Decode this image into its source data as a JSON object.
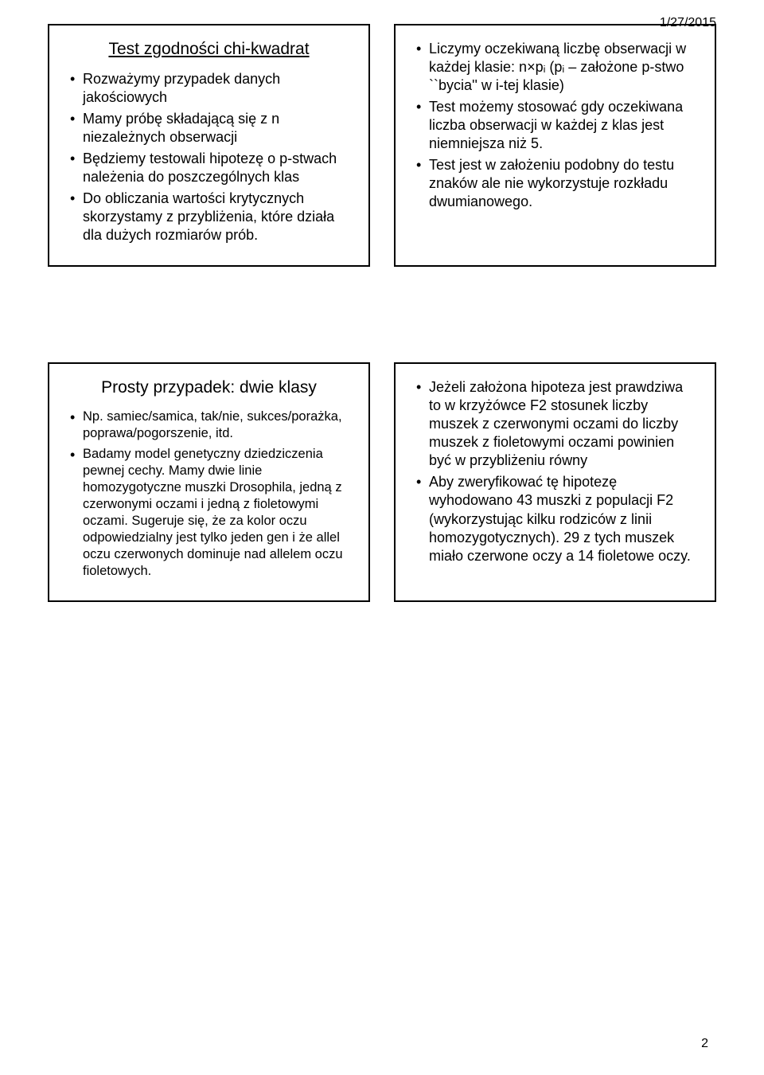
{
  "date": "1/27/2015",
  "page_number": "2",
  "boxes": {
    "b1": {
      "title": "Test zgodności chi-kwadrat",
      "items": [
        "Rozważymy przypadek danych jakościowych",
        "Mamy próbę składającą się z n niezależnych obserwacji",
        "Będziemy testowali hipotezę o p-stwach należenia do poszczególnych klas",
        "Do obliczania wartości krytycznych skorzystamy z przybliżenia, które działa dla dużych rozmiarów prób."
      ]
    },
    "b2": {
      "items": [
        "Liczymy oczekiwaną liczbę obserwacji w każdej klasie: n×pᵢ (pᵢ – założone p-stwo ``bycia'' w i-tej klasie)",
        "Test możemy stosować gdy oczekiwana liczba obserwacji w każdej z klas jest niemniejsza niż 5.",
        "Test jest w założeniu podobny do testu znaków ale nie wykorzystuje rozkładu dwumianowego."
      ]
    },
    "b3": {
      "title": "Prosty przypadek:  dwie klasy",
      "items": [
        "Np. samiec/samica, tak/nie, sukces/porażka, poprawa/pogorszenie,  itd.",
        "Badamy model genetyczny dziedziczenia pewnej cechy. Mamy dwie linie homozygotyczne muszki Drosophila, jedną z czerwonymi oczami i jedną z fioletowymi oczami. Sugeruje się, że za kolor oczu odpowiedzialny jest tylko jeden gen i że allel oczu czerwonych dominuje nad allelem oczu fioletowych."
      ]
    },
    "b4": {
      "items": [
        "Jeżeli założona hipoteza jest prawdziwa to w krzyżówce F2  stosunek liczby muszek z czerwonymi oczami do liczby muszek z fioletowymi oczami powinien być w przybliżeniu równy",
        "Aby zweryfikować tę hipotezę wyhodowano 43 muszki z populacji F2 (wykorzystując kilku rodziców z linii homozygotycznych). 29 z tych muszek miało czerwone oczy a 14 fioletowe oczy."
      ]
    }
  }
}
